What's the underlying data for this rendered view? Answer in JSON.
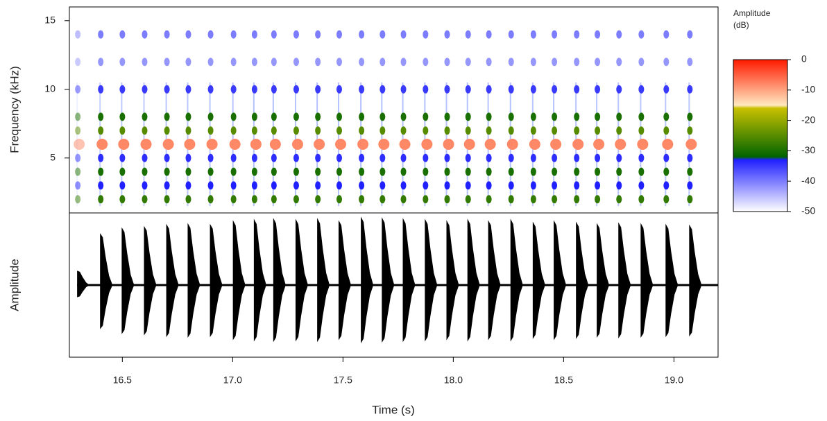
{
  "chart_data": {
    "type": "spectrogram",
    "xlabel": "Time (s)",
    "ylabel": "Frequency (kHz)",
    "osc_label": "Amplitude",
    "xlim": [
      16.26,
      19.2
    ],
    "xticks": [
      16.5,
      {
        "value": 17,
        "label": "17.0"
      },
      17.5,
      {
        "value": 18,
        "label": "18.0"
      },
      18.5,
      {
        "value": 19,
        "label": "19.0"
      }
    ],
    "ylim": [
      1,
      16
    ],
    "yticks": [
      5,
      10,
      15
    ],
    "osc_ylim": [
      -1,
      1
    ],
    "pulse_times": [
      16.295,
      16.399,
      16.497,
      16.598,
      16.699,
      16.796,
      16.897,
      17.001,
      17.096,
      17.184,
      17.285,
      17.383,
      17.48,
      17.581,
      17.676,
      17.771,
      17.871,
      17.969,
      18.064,
      18.158,
      18.259,
      18.36,
      18.455,
      18.556,
      18.65,
      18.748,
      18.849,
      18.962,
      19.069
    ],
    "pulse_amplitudes": [
      0.2,
      0.72,
      0.8,
      0.82,
      0.85,
      0.86,
      0.85,
      0.9,
      0.92,
      0.93,
      0.92,
      0.93,
      0.9,
      0.95,
      0.94,
      0.93,
      0.92,
      0.9,
      0.92,
      0.9,
      0.92,
      0.88,
      0.9,
      0.88,
      0.86,
      0.87,
      0.86,
      0.85,
      0.84
    ],
    "bands": [
      {
        "freq": 2,
        "db": -28
      },
      {
        "freq": 3,
        "db": -33
      },
      {
        "freq": 4,
        "db": -30
      },
      {
        "freq": 5,
        "db": -34
      },
      {
        "freq": 6,
        "db": -8
      },
      {
        "freq": 7,
        "db": -25
      },
      {
        "freq": 8,
        "db": -30
      },
      {
        "freq": 10,
        "db": -35
      },
      {
        "freq": 12,
        "db": -42
      },
      {
        "freq": 14,
        "db": -40
      }
    ],
    "colorbar": {
      "title": [
        "Amplitude",
        "(dB)"
      ],
      "zlim": [
        -50,
        0
      ],
      "zticks": [
        0,
        -10,
        -20,
        -30,
        -40,
        -50
      ],
      "stops": [
        0,
        -15,
        -16,
        -32,
        -33,
        -50
      ],
      "colors": [
        "#ff1a00",
        "#ffe8c0",
        "#c8c000",
        "#006400",
        "#2020ff",
        "#ffffff"
      ]
    }
  }
}
